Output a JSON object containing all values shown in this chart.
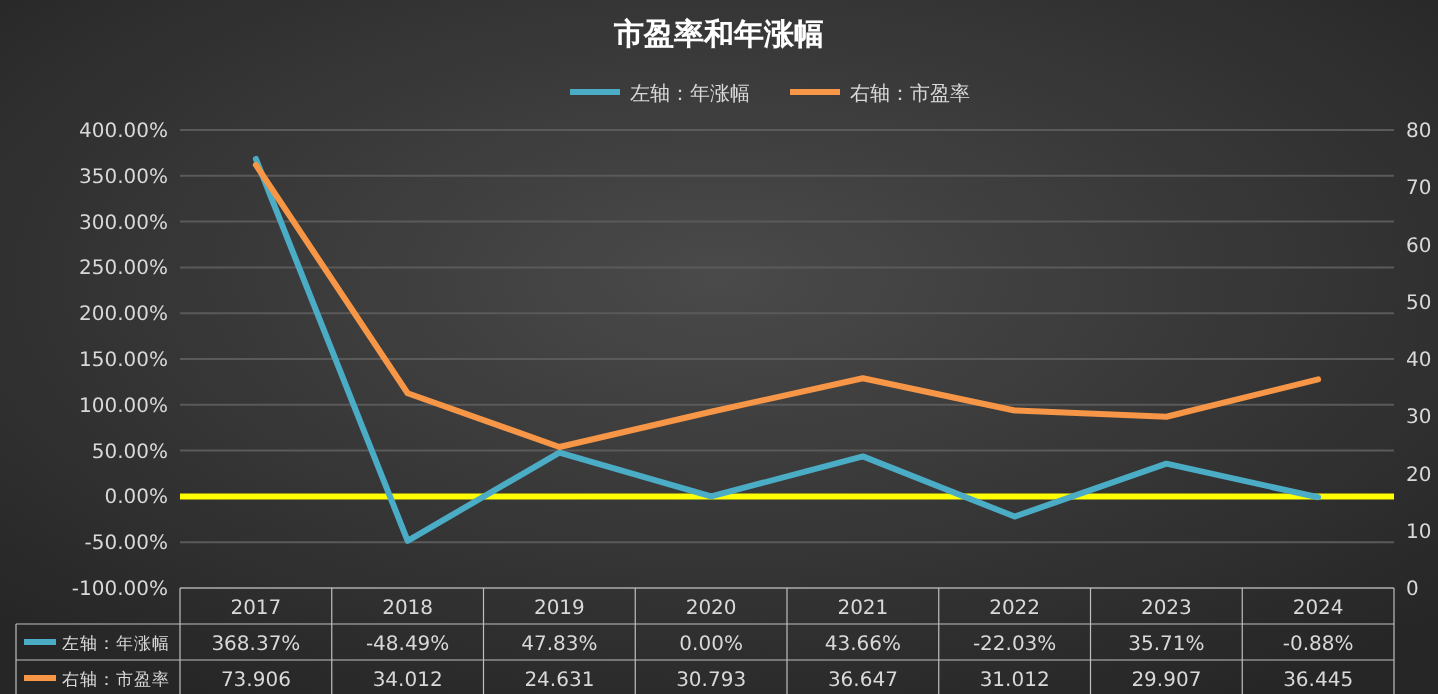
{
  "chart_data": {
    "type": "line",
    "title": "市盈率和年涨幅",
    "categories": [
      "2017",
      "2018",
      "2019",
      "2020",
      "2021",
      "2022",
      "2023",
      "2024"
    ],
    "series": [
      {
        "name": "左轴：年涨幅",
        "color": "#4bacc6",
        "values": [
          368.37,
          -48.49,
          47.83,
          0.0,
          43.66,
          -22.03,
          35.71,
          -0.88
        ],
        "value_labels": [
          "368.37%",
          "-48.49%",
          "47.83%",
          "0.00%",
          "43.66%",
          "-22.03%",
          "35.71%",
          "-0.88%"
        ]
      },
      {
        "name": "右轴：市盈率",
        "color": "#f79646",
        "axis": "y2",
        "values": [
          73.906,
          34.012,
          24.631,
          30.793,
          36.647,
          31.012,
          29.907,
          36.445
        ],
        "value_labels": [
          "73.906",
          "34.012",
          "24.631",
          "30.793",
          "36.647",
          "31.012",
          "29.907",
          "36.445"
        ]
      }
    ],
    "ylim": [
      -100,
      400
    ],
    "yticks": [
      {
        "value": -100,
        "label": "-100.00%"
      },
      {
        "value": -50,
        "label": "-50.00%"
      },
      {
        "value": 0,
        "label": "0.00%"
      },
      {
        "value": 50,
        "label": "50.00%"
      },
      {
        "value": 100,
        "label": "100.00%"
      },
      {
        "value": 150,
        "label": "150.00%"
      },
      {
        "value": 200,
        "label": "200.00%"
      },
      {
        "value": 250,
        "label": "250.00%"
      },
      {
        "value": 300,
        "label": "300.00%"
      },
      {
        "value": 350,
        "label": "350.00%"
      },
      {
        "value": 400,
        "label": "400.00%"
      }
    ],
    "y2lim": [
      0,
      80
    ],
    "y2ticks": [
      0,
      10,
      20,
      30,
      40,
      50,
      60,
      70,
      80
    ],
    "ref_lines": [
      {
        "axis": "y",
        "value": 0,
        "color": "#ffff00"
      }
    ],
    "grid": "y",
    "legend": "top",
    "marker": "none",
    "line_style": "solid"
  }
}
